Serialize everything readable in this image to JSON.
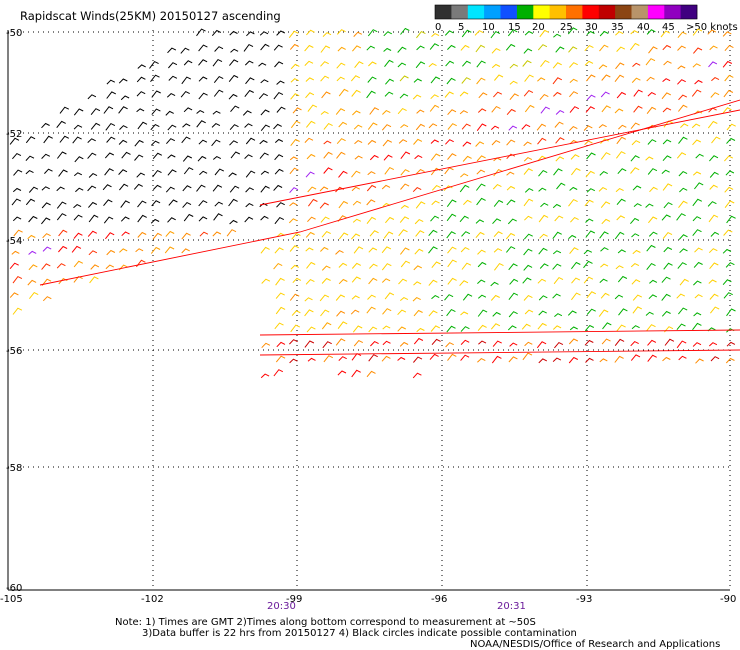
{
  "title": "Rapidscat Winds(25KM) 20150127 ascending",
  "legend": {
    "labels": [
      "0",
      "5",
      "10",
      "15",
      "20",
      "25",
      "30",
      "35",
      "40",
      "45",
      ">50 knots"
    ],
    "colors": [
      "#303030",
      "#7a7a7a",
      "#00e5ff",
      "#00a0ff",
      "#1050ff",
      "#00b000",
      "#ffff00",
      "#ffc000",
      "#ff7000",
      "#ff0000",
      "#c00000",
      "#8b4513",
      "#b8946a",
      "#ff00ff",
      "#9000c0",
      "#400080"
    ]
  },
  "map": {
    "lon_ticks": [
      "-105",
      "-102",
      "-99",
      "-96",
      "-93",
      "-90"
    ],
    "lat_ticks": [
      "-50",
      "-52",
      "-54",
      "-56",
      "-58",
      "-60"
    ]
  },
  "times": [
    "20:30",
    "20:31"
  ],
  "notes": [
    "Note: 1) Times are GMT 2)Times along bottom correspond to measurement at ~50S",
    "3)Data buffer is 22 hrs from 20150127 4) Black circles indicate possible contamination"
  ],
  "credit": "NOAA/NESDIS/Office of Research and Applications"
}
